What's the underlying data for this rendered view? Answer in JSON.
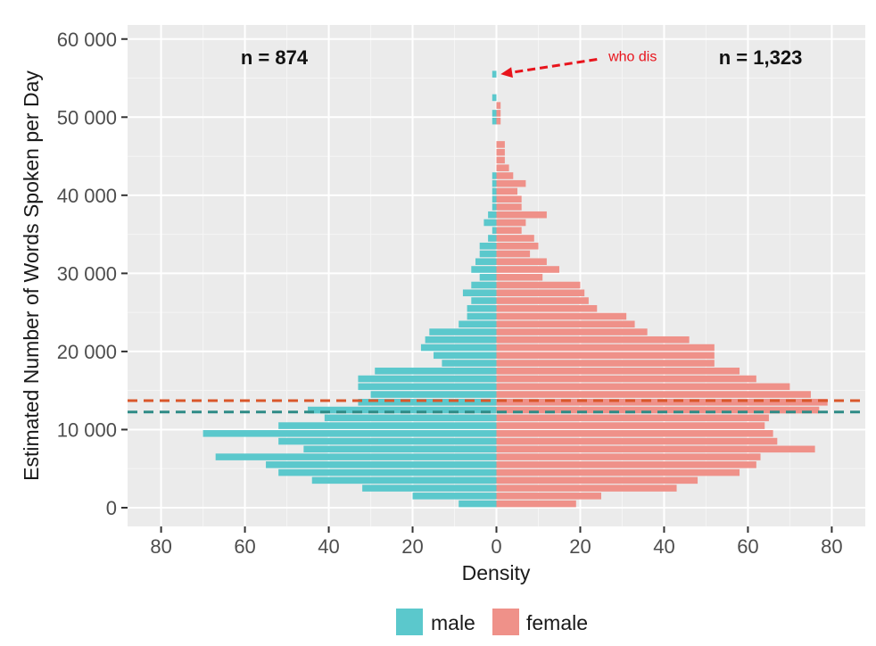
{
  "chart_data": {
    "type": "bar",
    "orientation": "horizontal-population-pyramid",
    "xlabel": "Density",
    "ylabel": "Estimated Number of Words Spoken per Day",
    "xlim": [
      -88,
      88
    ],
    "ylim": [
      -2400,
      61800
    ],
    "x_ticks": [
      -80,
      -60,
      -40,
      -20,
      0,
      20,
      40,
      60,
      80
    ],
    "x_tick_labels": [
      "80",
      "60",
      "40",
      "20",
      "0",
      "20",
      "40",
      "60",
      "80"
    ],
    "y_ticks": [
      0,
      10000,
      20000,
      30000,
      40000,
      50000,
      60000
    ],
    "y_tick_labels": [
      "0",
      "10 000",
      "20 000",
      "30 000",
      "40 000",
      "50 000",
      "60 000"
    ],
    "bin_width": 1000,
    "bin_starts": [
      0,
      1000,
      2000,
      3000,
      4000,
      5000,
      6000,
      7000,
      8000,
      9000,
      10000,
      11000,
      12000,
      13000,
      14000,
      15000,
      16000,
      17000,
      18000,
      19000,
      20000,
      21000,
      22000,
      23000,
      24000,
      25000,
      26000,
      27000,
      28000,
      29000,
      30000,
      31000,
      32000,
      33000,
      34000,
      35000,
      36000,
      37000,
      38000,
      39000,
      40000,
      41000,
      42000,
      43000,
      44000,
      45000,
      46000,
      47000,
      48000,
      49000,
      50000,
      51000,
      52000,
      53000,
      54000,
      55000
    ],
    "series": [
      {
        "name": "male",
        "color": "#5bc8cc",
        "values": [
          9,
          20,
          32,
          44,
          52,
          55,
          67,
          46,
          52,
          70,
          52,
          41,
          45,
          33,
          30,
          33,
          33,
          29,
          13,
          15,
          18,
          17,
          16,
          9,
          7,
          7,
          6,
          8,
          6,
          4,
          6,
          5,
          4,
          4,
          2,
          1,
          3,
          2,
          1,
          1,
          1,
          1,
          1,
          0,
          0,
          0,
          0,
          0,
          0,
          1,
          1,
          0,
          1,
          0,
          0,
          1
        ]
      },
      {
        "name": "female",
        "color": "#ef9189",
        "values": [
          19,
          25,
          43,
          48,
          58,
          62,
          63,
          76,
          67,
          66,
          64,
          65,
          77,
          79,
          75,
          70,
          62,
          58,
          52,
          52,
          52,
          46,
          36,
          33,
          31,
          24,
          22,
          21,
          20,
          11,
          15,
          12,
          8,
          10,
          9,
          6,
          7,
          12,
          6,
          6,
          5,
          7,
          4,
          3,
          2,
          2,
          2,
          0,
          0,
          1,
          1,
          1,
          0,
          0,
          0,
          0
        ]
      }
    ],
    "reference_lines": [
      {
        "series": "female",
        "y": 13700,
        "color": "#d9572b",
        "style": "dashed"
      },
      {
        "series": "male",
        "y": 12250,
        "color": "#2e8b86",
        "style": "dashed"
      }
    ],
    "annotations": [
      {
        "text": "n = 874",
        "x": -53,
        "y": 56800
      },
      {
        "text": "n = 1,323",
        "x": 63,
        "y": 56800
      },
      {
        "text": "who dis",
        "x": 32.5,
        "y": 57200,
        "color": "#e8141c"
      }
    ],
    "arrow": {
      "from": {
        "x": 24,
        "y": 57400
      },
      "to": {
        "x": 1,
        "y": 55500
      },
      "color": "#e8141c"
    },
    "grid": true,
    "legend_position": "bottom"
  }
}
